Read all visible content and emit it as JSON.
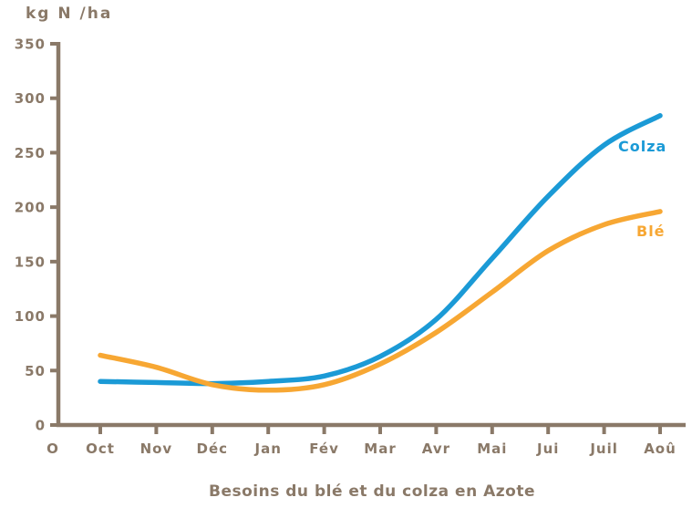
{
  "page": {
    "background_color": "#ffffff",
    "text_color": "#8a7968"
  },
  "chart_data": {
    "type": "line",
    "title": "Besoins du blé et du colza en Azote",
    "y_axis_label": "kg N /ha",
    "x_origin_label": "O",
    "categories": [
      "Oct",
      "Nov",
      "Déc",
      "Jan",
      "Fév",
      "Mar",
      "Avr",
      "Mai",
      "Jui",
      "Juil",
      "Aoû"
    ],
    "ylim": [
      0,
      350
    ],
    "yticks": [
      0,
      50,
      100,
      150,
      200,
      250,
      300,
      350
    ],
    "grid": false,
    "axis_color": "#8a7968",
    "legend_position": "inside-right-at-line-ends",
    "series": [
      {
        "name": "Colza",
        "color": "#1b9ad6",
        "values": [
          40,
          39,
          38,
          40,
          45,
          63,
          97,
          153,
          210,
          257,
          284
        ]
      },
      {
        "name": "Blé",
        "color": "#f7a733",
        "values": [
          64,
          53,
          37,
          32,
          37,
          56,
          85,
          122,
          160,
          184,
          196
        ]
      }
    ]
  }
}
